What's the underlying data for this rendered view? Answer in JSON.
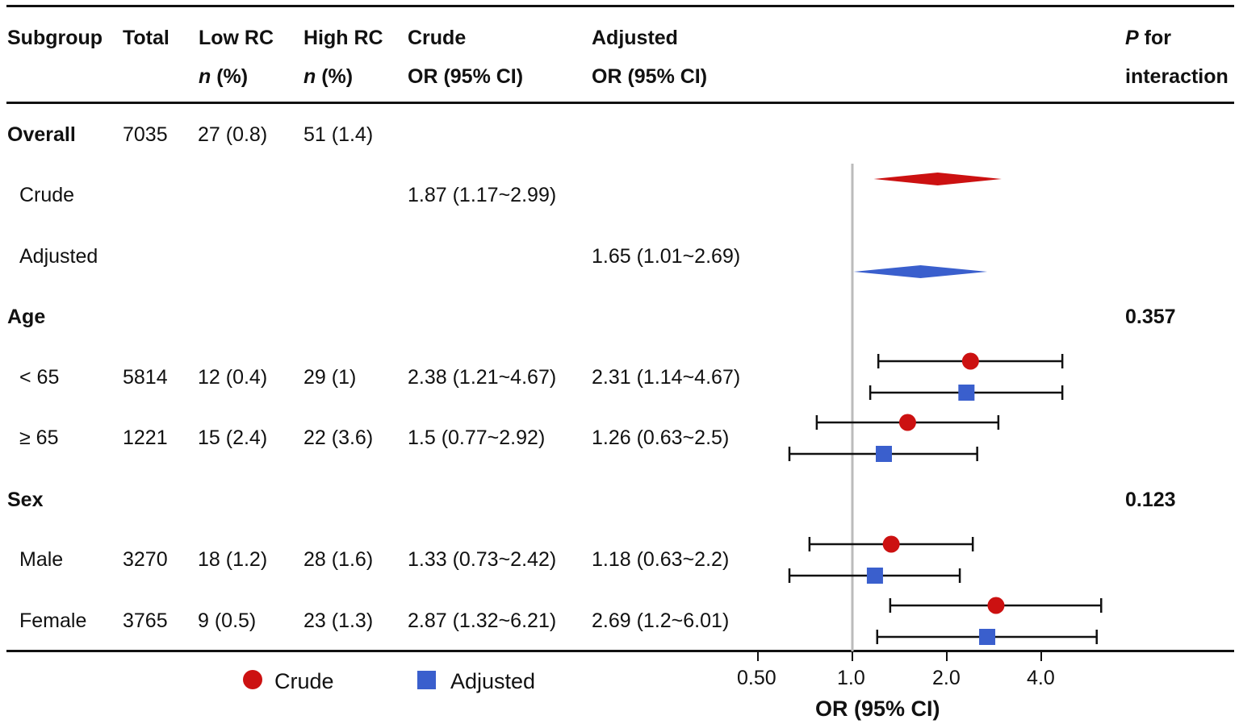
{
  "headers": {
    "subgroup": "Subgroup",
    "total": "Total",
    "low_rc": "Low RC",
    "high_rc": "High RC",
    "n_italic": "n",
    "n_pct": " (%)",
    "crude": "Crude",
    "adjusted": "Adjusted",
    "or_ci": "OR (95% CI)",
    "p_italic": "P",
    "p_for": " for",
    "interaction": "interaction"
  },
  "rows": [
    {
      "label": "Overall",
      "total": "7035",
      "low": "27 (0.8)",
      "high": "51 (1.4)"
    },
    {
      "label": "Crude",
      "crude": "1.87 (1.17~2.99)"
    },
    {
      "label": "Adjusted",
      "adjusted": "1.65 (1.01~2.69)"
    },
    {
      "label": "Age",
      "p": "0.357"
    },
    {
      "label": "< 65",
      "total": "5814",
      "low": "12 (0.4)",
      "high": "29 (1)",
      "crude": "2.38 (1.21~4.67)",
      "adjusted": "2.31 (1.14~4.67)"
    },
    {
      "label": "≥ 65",
      "total": "1221",
      "low": "15 (2.4)",
      "high": "22 (3.6)",
      "crude": "1.5 (0.77~2.92)",
      "adjusted": "1.26 (0.63~2.5)"
    },
    {
      "label": "Sex",
      "p": "0.123"
    },
    {
      "label": "Male",
      "total": "3270",
      "low": "18 (1.2)",
      "high": "28 (1.6)",
      "crude": "1.33 (0.73~2.42)",
      "adjusted": "1.18 (0.63~2.2)"
    },
    {
      "label": "Female",
      "total": "3765",
      "low": "9 (0.5)",
      "high": "23 (1.3)",
      "crude": "2.87 (1.32~6.21)",
      "adjusted": "2.69 (1.2~6.01)"
    }
  ],
  "legend": {
    "crude": "Crude",
    "adjusted": "Adjusted"
  },
  "colors": {
    "crude": "#cc1111",
    "adjusted": "#3a5fcd",
    "ref_line": "#bbbbbb",
    "ink": "#111111"
  },
  "chart_data": {
    "type": "forest",
    "xscale": "log2",
    "xlim": [
      0.5,
      6.4
    ],
    "xticks": [
      0.5,
      1.0,
      2.0,
      4.0
    ],
    "xtick_labels": [
      "0.50",
      "1.0",
      "2.0",
      "4.0"
    ],
    "xlabel": "OR (95% CI)",
    "reference": 1.0,
    "summary": [
      {
        "name": "Overall crude",
        "series": "crude",
        "est": 1.87,
        "lo": 1.17,
        "hi": 2.99
      },
      {
        "name": "Overall adjusted",
        "series": "adjusted",
        "est": 1.65,
        "lo": 1.01,
        "hi": 2.69
      }
    ],
    "series": [
      {
        "name": "Crude",
        "points": [
          {
            "group": "< 65",
            "est": 2.38,
            "lo": 1.21,
            "hi": 4.67
          },
          {
            "group": "≥ 65",
            "est": 1.5,
            "lo": 0.77,
            "hi": 2.92
          },
          {
            "group": "Male",
            "est": 1.33,
            "lo": 0.73,
            "hi": 2.42
          },
          {
            "group": "Female",
            "est": 2.87,
            "lo": 1.32,
            "hi": 6.21
          }
        ]
      },
      {
        "name": "Adjusted",
        "points": [
          {
            "group": "< 65",
            "est": 2.31,
            "lo": 1.14,
            "hi": 4.67
          },
          {
            "group": "≥ 65",
            "est": 1.26,
            "lo": 0.63,
            "hi": 2.5
          },
          {
            "group": "Male",
            "est": 1.18,
            "lo": 0.63,
            "hi": 2.2
          },
          {
            "group": "Female",
            "est": 2.69,
            "lo": 1.2,
            "hi": 6.01
          }
        ]
      }
    ]
  }
}
